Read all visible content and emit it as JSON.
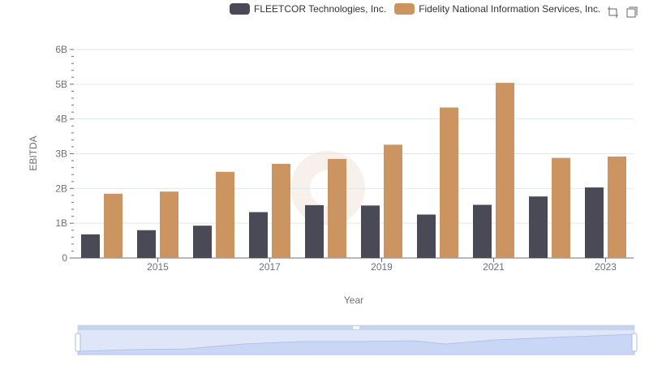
{
  "legend": {
    "series_a": "FLEETCOR Technologies, Inc.",
    "series_b": "Fidelity National Information Services, Inc."
  },
  "toolbox": {
    "zoom_icon": "zoom-icon",
    "restore_icon": "restore-icon"
  },
  "colors": {
    "series_a": "#4a4a57",
    "series_b": "#cc9461",
    "grid": "#e0e6f1",
    "axis": "#6e7079"
  },
  "chart_data": {
    "type": "bar",
    "title": "",
    "xlabel": "Year",
    "ylabel": "EBITDA",
    "categories": [
      "2014",
      "2015",
      "2016",
      "2017",
      "2018",
      "2019",
      "2020",
      "2021",
      "2022",
      "2023"
    ],
    "x_tick_labels": [
      "2015",
      "2017",
      "2019",
      "2021",
      "2023"
    ],
    "y_tick_labels": [
      "0",
      "1B",
      "2B",
      "3B",
      "4B",
      "5B",
      "6B"
    ],
    "ylim": [
      0,
      6000000000
    ],
    "series": [
      {
        "name": "FLEETCOR Technologies, Inc.",
        "values": [
          680000000,
          800000000,
          930000000,
          1320000000,
          1520000000,
          1510000000,
          1250000000,
          1530000000,
          1770000000,
          2030000000
        ]
      },
      {
        "name": "Fidelity National Information Services, Inc.",
        "values": [
          1850000000,
          1910000000,
          2480000000,
          2710000000,
          2850000000,
          3260000000,
          4330000000,
          5040000000,
          2880000000,
          2920000000
        ]
      }
    ],
    "legend_position": "top-right",
    "data_zoom": "slider"
  }
}
